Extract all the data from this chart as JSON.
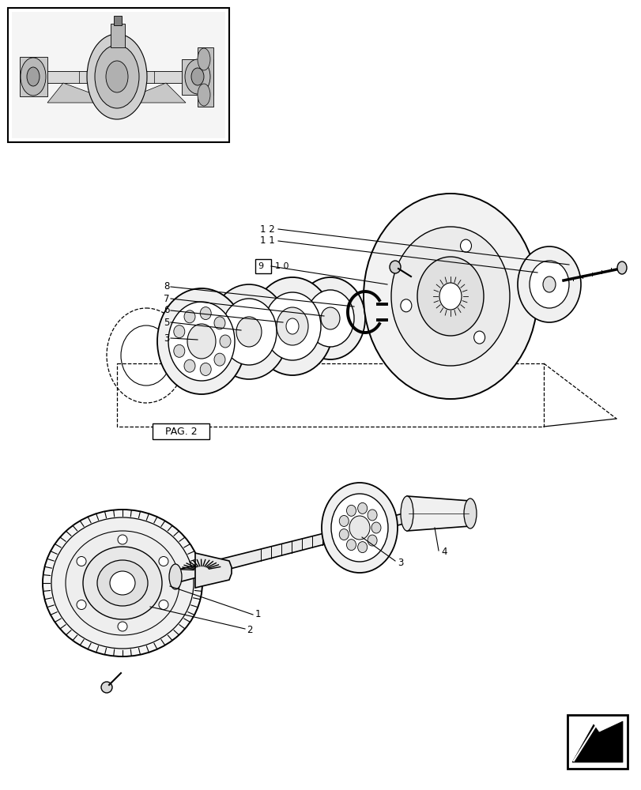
{
  "bg_color": "#ffffff",
  "lc": "#000000",
  "figsize": [
    8.12,
    10.0
  ],
  "dpi": 100,
  "pag2_label": "PAG. 2"
}
